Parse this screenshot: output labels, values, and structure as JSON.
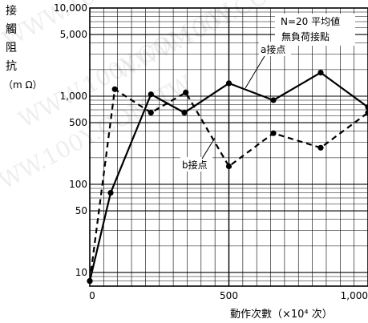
{
  "chart_data": {
    "type": "line",
    "ylabel_chars": [
      "接",
      "觸",
      "阻",
      "抗"
    ],
    "ylabel_unit": "（m Ω）",
    "xlabel": "動作次數（×10⁴ 次）",
    "legend_lines": [
      "N=20 平均値",
      "無負荷接點"
    ],
    "xlim": [
      0,
      1000
    ],
    "ylim": [
      7,
      10000
    ],
    "yscale": "log",
    "xticks": [
      {
        "value": 0,
        "label": "0"
      },
      {
        "value": 500,
        "label": "500"
      },
      {
        "value": 1000,
        "label": "1,000"
      }
    ],
    "yticks": [
      {
        "value": 10000,
        "label": "10,000"
      },
      {
        "value": 5000,
        "label": "5,000"
      },
      {
        "value": 1000,
        "label": "1,000"
      },
      {
        "value": 500,
        "label": "500"
      },
      {
        "value": 100,
        "label": "100"
      },
      {
        "value": 50,
        "label": "50"
      },
      {
        "value": 10,
        "label": "10"
      }
    ],
    "grid": true,
    "series": [
      {
        "name": "a接点",
        "style": "solid",
        "x": [
          0,
          75,
          220,
          340,
          500,
          660,
          830,
          1000
        ],
        "y": [
          8,
          80,
          1050,
          650,
          1400,
          900,
          1850,
          750
        ]
      },
      {
        "name": "b接点",
        "style": "dashed",
        "x": [
          0,
          90,
          220,
          345,
          500,
          660,
          830,
          1000
        ],
        "y": [
          8,
          1200,
          650,
          1100,
          160,
          380,
          260,
          650
        ]
      }
    ],
    "watermark": "WWW.100Y.COM.TW"
  }
}
